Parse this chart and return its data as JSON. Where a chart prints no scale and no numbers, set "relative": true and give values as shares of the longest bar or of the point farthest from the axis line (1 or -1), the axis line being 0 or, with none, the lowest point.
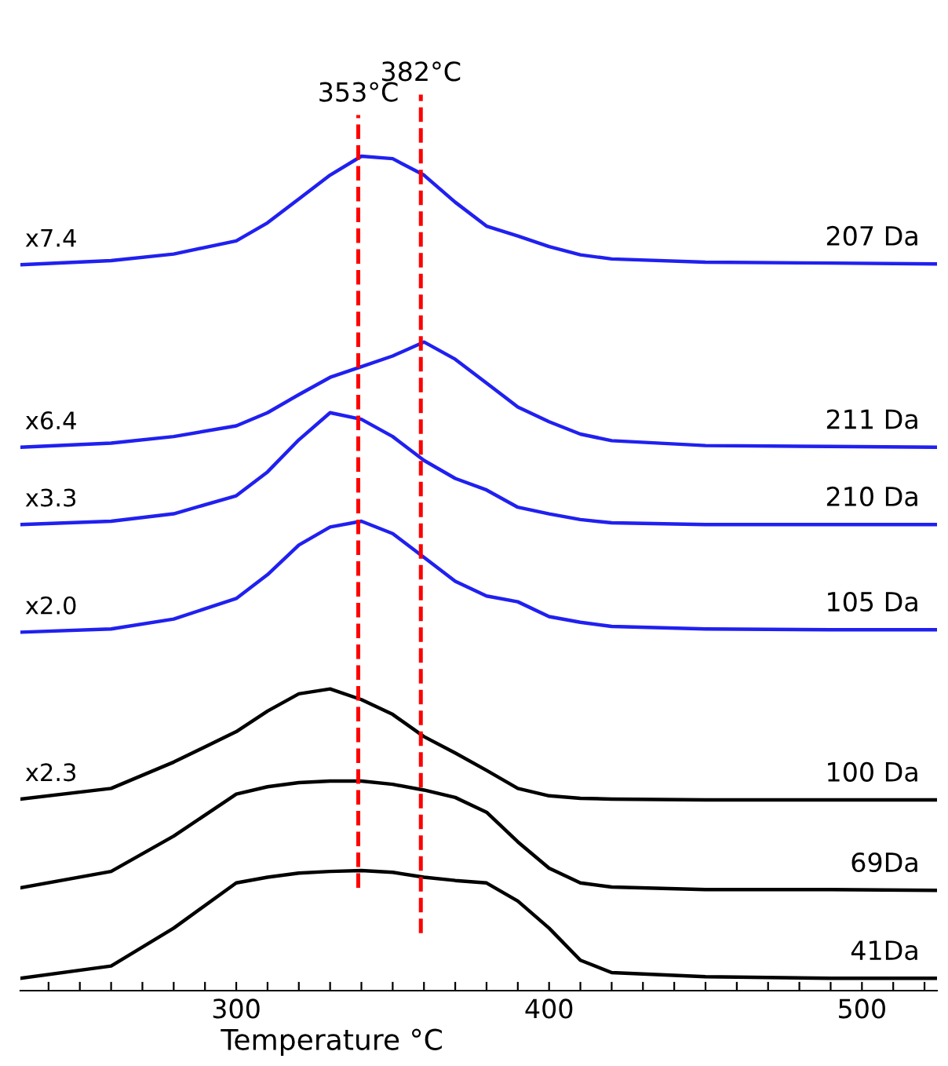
{
  "chart_data": {
    "type": "line",
    "relative": true,
    "xlabel": "Temperature °C",
    "x": [
      231,
      260,
      280,
      300,
      310,
      320,
      330,
      340,
      350,
      360,
      370,
      380,
      390,
      400,
      410,
      420,
      450,
      490,
      524
    ],
    "xlim": [
      231,
      524
    ],
    "xticks": [
      {
        "value": 240,
        "label": null
      },
      {
        "value": 250,
        "label": null
      },
      {
        "value": 260,
        "label": null
      },
      {
        "value": 270,
        "label": null
      },
      {
        "value": 280,
        "label": null
      },
      {
        "value": 290,
        "label": null
      },
      300,
      {
        "value": 310,
        "label": null
      },
      {
        "value": 320,
        "label": null
      },
      {
        "value": 330,
        "label": null
      },
      {
        "value": 340,
        "label": null
      },
      {
        "value": 350,
        "label": null
      },
      {
        "value": 360,
        "label": null
      },
      {
        "value": 370,
        "label": null
      },
      {
        "value": 380,
        "label": null
      },
      {
        "value": 390,
        "label": null
      },
      400,
      {
        "value": 410,
        "label": null
      },
      {
        "value": 420,
        "label": null
      },
      {
        "value": 430,
        "label": null
      },
      {
        "value": 440,
        "label": null
      },
      {
        "value": 450,
        "label": null
      },
      {
        "value": 460,
        "label": null
      },
      {
        "value": 470,
        "label": null
      },
      {
        "value": 480,
        "label": null
      },
      {
        "value": 490,
        "label": null
      },
      500,
      {
        "value": 510,
        "label": null
      },
      {
        "value": 520,
        "label": null
      }
    ],
    "tick_labels": "x",
    "grid": false,
    "legend": false,
    "marker": "none",
    "line_style": "solid",
    "series": [
      {
        "name": "207 Da",
        "color": "#2020f0",
        "values": [
          0.868,
          0.873,
          0.881,
          0.897,
          0.919,
          0.948,
          0.977,
          1.0,
          0.997,
          0.977,
          0.944,
          0.915,
          0.903,
          0.89,
          0.88,
          0.875,
          0.871,
          0.87,
          0.869
        ]
      },
      {
        "name": "211 Da",
        "color": "#2020f0",
        "values": [
          0.646,
          0.651,
          0.659,
          0.672,
          0.688,
          0.71,
          0.731,
          0.744,
          0.757,
          0.774,
          0.753,
          0.724,
          0.695,
          0.677,
          0.662,
          0.654,
          0.648,
          0.647,
          0.646
        ]
      },
      {
        "name": "210 Da",
        "color": "#2020f0",
        "values": [
          0.552,
          0.556,
          0.565,
          0.587,
          0.616,
          0.655,
          0.688,
          0.68,
          0.659,
          0.63,
          0.608,
          0.594,
          0.573,
          0.565,
          0.558,
          0.554,
          0.552,
          0.552,
          0.552
        ]
      },
      {
        "name": "105 Da",
        "color": "#2020f0",
        "values": [
          0.421,
          0.425,
          0.437,
          0.462,
          0.491,
          0.527,
          0.549,
          0.556,
          0.541,
          0.512,
          0.483,
          0.465,
          0.458,
          0.44,
          0.433,
          0.428,
          0.425,
          0.424,
          0.424
        ]
      },
      {
        "name": "100 Da",
        "color": "#000000",
        "values": [
          0.218,
          0.231,
          0.263,
          0.3,
          0.325,
          0.346,
          0.352,
          0.339,
          0.321,
          0.294,
          0.274,
          0.253,
          0.231,
          0.222,
          0.219,
          0.218,
          0.217,
          0.217,
          0.217
        ]
      },
      {
        "name": "69Da",
        "color": "#000000",
        "values": [
          0.11,
          0.13,
          0.173,
          0.224,
          0.233,
          0.238,
          0.24,
          0.24,
          0.236,
          0.229,
          0.22,
          0.202,
          0.166,
          0.134,
          0.116,
          0.111,
          0.108,
          0.108,
          0.107
        ]
      },
      {
        "name": "41Da",
        "color": "#000000",
        "values": [
          0.0,
          0.015,
          0.061,
          0.116,
          0.123,
          0.128,
          0.13,
          0.131,
          0.129,
          0.123,
          0.119,
          0.116,
          0.094,
          0.061,
          0.022,
          0.007,
          0.002,
          0.0,
          0.0
        ]
      }
    ],
    "annotations": [
      "x7.4",
      "x6.4",
      "x3.3",
      "x2.0",
      "x2.3"
    ],
    "ref_lines": [
      {
        "axis": "x",
        "value": 339,
        "label": "353°C",
        "color": "#ff0000",
        "line_style": "dashed"
      },
      {
        "axis": "x",
        "value": 359,
        "label": "382°C",
        "color": "#ff0000",
        "line_style": "dashed"
      }
    ]
  }
}
